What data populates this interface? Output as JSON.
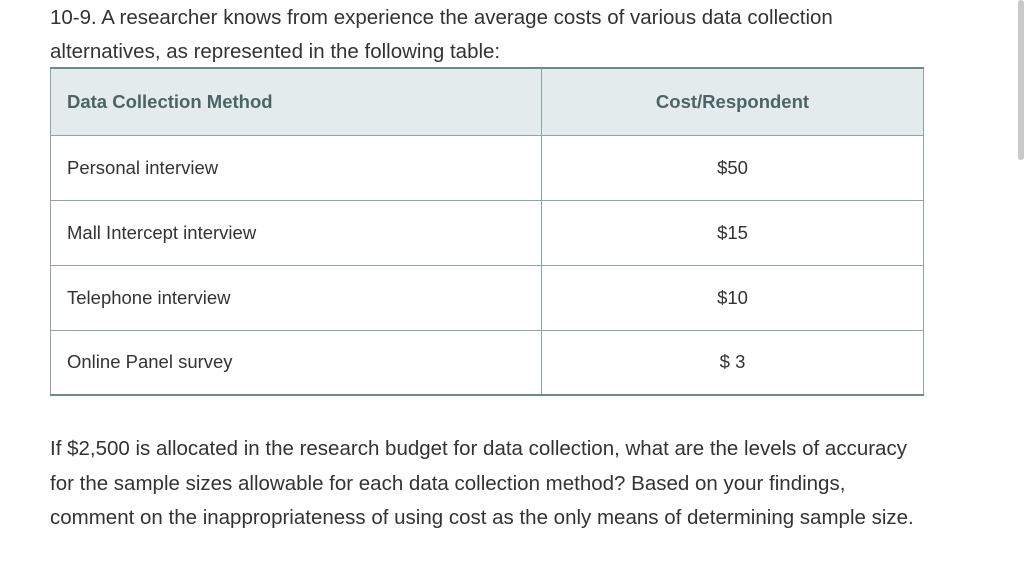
{
  "intro": "10-9. A researcher knows from experience the average costs of various data collection alternatives, as represented in the following table:",
  "table": {
    "headers": [
      "Data Collection Method",
      "Cost/Respondent"
    ],
    "rows": [
      {
        "method": "Personal interview",
        "cost": "$50"
      },
      {
        "method": "Mall Intercept interview",
        "cost": "$15"
      },
      {
        "method": "Telephone interview",
        "cost": "$10"
      },
      {
        "method": "Online Panel survey",
        "cost": "$ 3"
      }
    ]
  },
  "question": "If $2,500 is allocated in the research budget for data collection, what are the levels of accuracy for the sample sizes allowable for each data collection method? Based on your findings, comment on the inappropriateness of using cost as the only means of determining sample size."
}
